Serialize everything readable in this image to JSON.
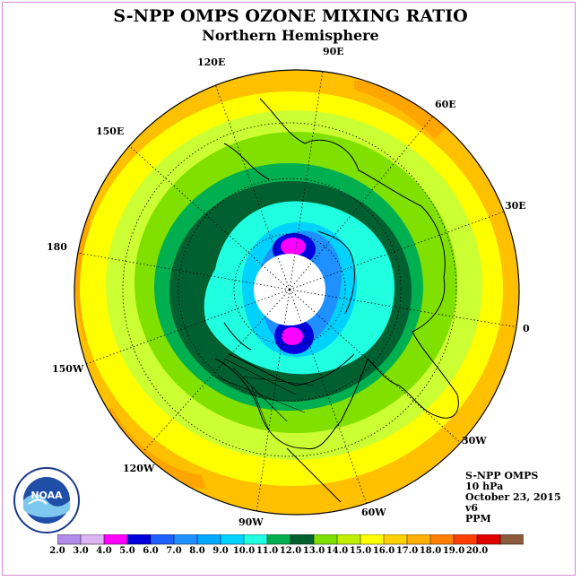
{
  "title": "S-NPP OMPS OZONE MIXING RATIO",
  "subtitle": "Northern Hemisphere",
  "longitude_labels": [
    "90E",
    "60E",
    "30E",
    "0",
    "30W",
    "60W",
    "90W",
    "120W",
    "150W",
    "180",
    "150E",
    "120E"
  ],
  "info": {
    "instrument": "S-NPP OMPS",
    "level": "10 hPa",
    "date": "October 23, 2015",
    "version": "v6",
    "units": "PPM"
  },
  "logo_text": "NOAA",
  "colorbar": {
    "ticks": [
      "2.0",
      "3.0",
      "4.0",
      "5.0",
      "6.0",
      "7.0",
      "8.0",
      "9.0",
      "10.0",
      "11.0",
      "12.0",
      "13.0",
      "14.0",
      "15.0",
      "16.0",
      "17.0",
      "18.0",
      "19.0",
      "20.0"
    ],
    "colors": [
      "#b28ce8",
      "#dcb4f0",
      "#ff00ff",
      "#0000dd",
      "#2060ff",
      "#1e90ff",
      "#00aaff",
      "#00d2ff",
      "#20ffe0",
      "#00b050",
      "#006030",
      "#80e000",
      "#c0f000",
      "#ffff00",
      "#ffd000",
      "#ffb000",
      "#ff8000",
      "#ff4000",
      "#e00000",
      "#8c5a3c"
    ]
  },
  "map_colors": {
    "outer": "#ffc000",
    "yellow": "#ffff00",
    "yellowgreen": "#ccff33",
    "lightgreen": "#80e000",
    "green": "#00b050",
    "darkgreen": "#006030",
    "cyan": "#20ffe0",
    "lightblue": "#00d2ff",
    "blue": "#1e90ff",
    "deepblue": "#0000dd",
    "magenta": "#ff00ff",
    "orange": "#ffa500",
    "polar_night": "#ffffff"
  }
}
